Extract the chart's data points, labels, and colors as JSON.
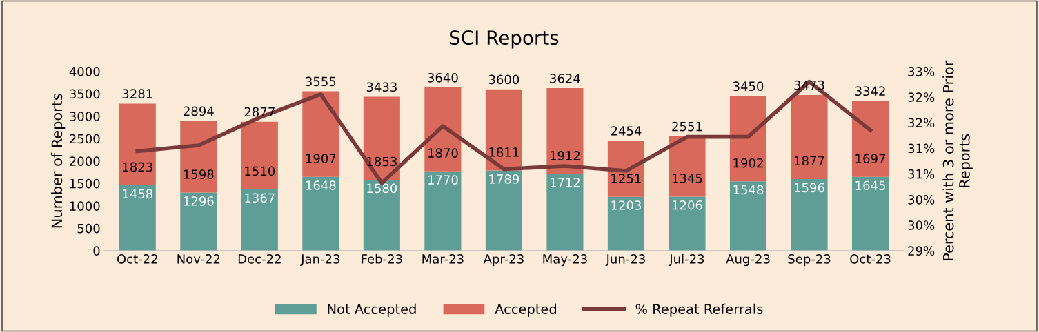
{
  "chart_data": {
    "type": "bar",
    "title": "SCI Reports",
    "ylabel": "Number of Reports",
    "y2label": "Percent with 3 or more Prior\nReports",
    "categories": [
      "Oct-22",
      "Nov-22",
      "Dec-22",
      "Jan-23",
      "Feb-23",
      "Mar-23",
      "Apr-23",
      "May-23",
      "Jun-23",
      "Jul-23",
      "Aug-23",
      "Sep-23",
      "Oct-23"
    ],
    "stacked": true,
    "series": [
      {
        "name": "Not Accepted",
        "color": "#5f9e97",
        "values": [
          1458,
          1296,
          1367,
          1648,
          1580,
          1770,
          1789,
          1712,
          1203,
          1206,
          1548,
          1596,
          1645
        ],
        "value_labels": [
          "1458",
          "1296",
          "1367",
          "1648",
          "1580",
          "1770",
          "1789",
          "1712",
          "1203",
          "1206",
          "1548",
          "1596",
          "1645"
        ]
      },
      {
        "name": "Accepted",
        "color": "#d9695a",
        "values": [
          1823,
          1598,
          1510,
          1907,
          1853,
          1870,
          1811,
          1912,
          1251,
          1345,
          1902,
          1877,
          1697
        ],
        "value_labels": [
          "1823",
          "1598",
          "1510",
          "1907",
          "1853",
          "1870",
          "1811",
          "1912",
          "1251",
          "1345",
          "1902",
          "1877",
          "1697"
        ]
      },
      {
        "name": "% Repeat Referrals",
        "type": "line",
        "axis": "y2",
        "color": "#7b3a3a",
        "values": [
          31.22,
          31.35,
          31.97,
          32.49,
          30.51,
          31.78,
          30.82,
          30.89,
          30.78,
          31.54,
          31.54,
          32.77,
          31.69
        ]
      }
    ],
    "totals": [
      "3281",
      "2894",
      "2877",
      "3555",
      "3433",
      "3640",
      "3600",
      "3624",
      "2454",
      "2551",
      "3450",
      "3473",
      "3342"
    ],
    "ylim": [
      0,
      4000
    ],
    "yticks": [
      0,
      500,
      1000,
      1500,
      2000,
      2500,
      3000,
      3500,
      4000
    ],
    "y2lim": [
      29,
      33
    ],
    "y2ticks": [
      {
        "value": 29,
        "label": "29%"
      },
      {
        "value": 29.571,
        "label": "30%"
      },
      {
        "value": 30.143,
        "label": "30%"
      },
      {
        "value": 30.714,
        "label": "31%"
      },
      {
        "value": 31.286,
        "label": "31%"
      },
      {
        "value": 31.857,
        "label": "32%"
      },
      {
        "value": 32.429,
        "label": "32%"
      },
      {
        "value": 33,
        "label": "33%"
      }
    ],
    "grid": false,
    "legend": "bottom"
  }
}
